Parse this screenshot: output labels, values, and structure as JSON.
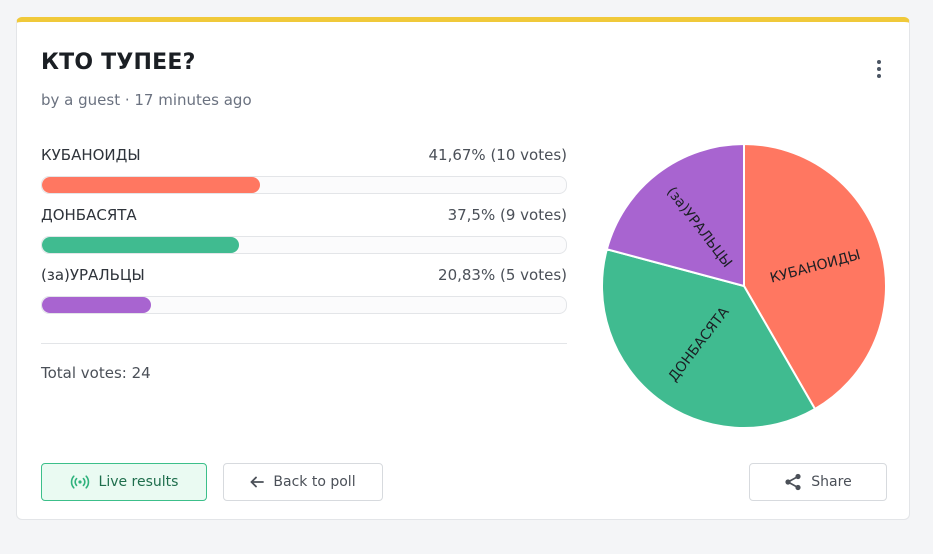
{
  "poll": {
    "title": "КТО ТУПЕЕ?",
    "meta": "by a guest · 17 minutes ago",
    "total_votes": "Total votes: 24"
  },
  "options": [
    {
      "label": "КУБАНОИДЫ",
      "stat": "41,67% (10 votes)",
      "percent": 41.67,
      "votes": 10,
      "color": "#ff7761"
    },
    {
      "label": "ДОНБАСЯТА",
      "stat": "37,5% (9 votes)",
      "percent": 37.5,
      "votes": 9,
      "color": "#40bb90"
    },
    {
      "label": "(за)УРАЛЬЦЫ",
      "stat": "20,83% (5 votes)",
      "percent": 20.83,
      "votes": 5,
      "color": "#a864d0"
    }
  ],
  "chart_data": {
    "type": "pie",
    "categories": [
      "КУБАНОИДЫ",
      "ДОНБАСЯТА",
      "(за)УРАЛЬЦЫ"
    ],
    "values": [
      10,
      9,
      5
    ],
    "colors": [
      "#ff7761",
      "#40bb90",
      "#a864d0"
    ]
  },
  "buttons": {
    "live": "Live results",
    "back": "Back to poll",
    "share": "Share"
  },
  "icons": {
    "live": "broadcast-icon",
    "back": "arrow-left-icon",
    "share": "share-icon",
    "menu": "kebab-menu-icon"
  },
  "colors": {
    "accent_top": "#f0c93a",
    "live_border": "#3cbf8a"
  }
}
